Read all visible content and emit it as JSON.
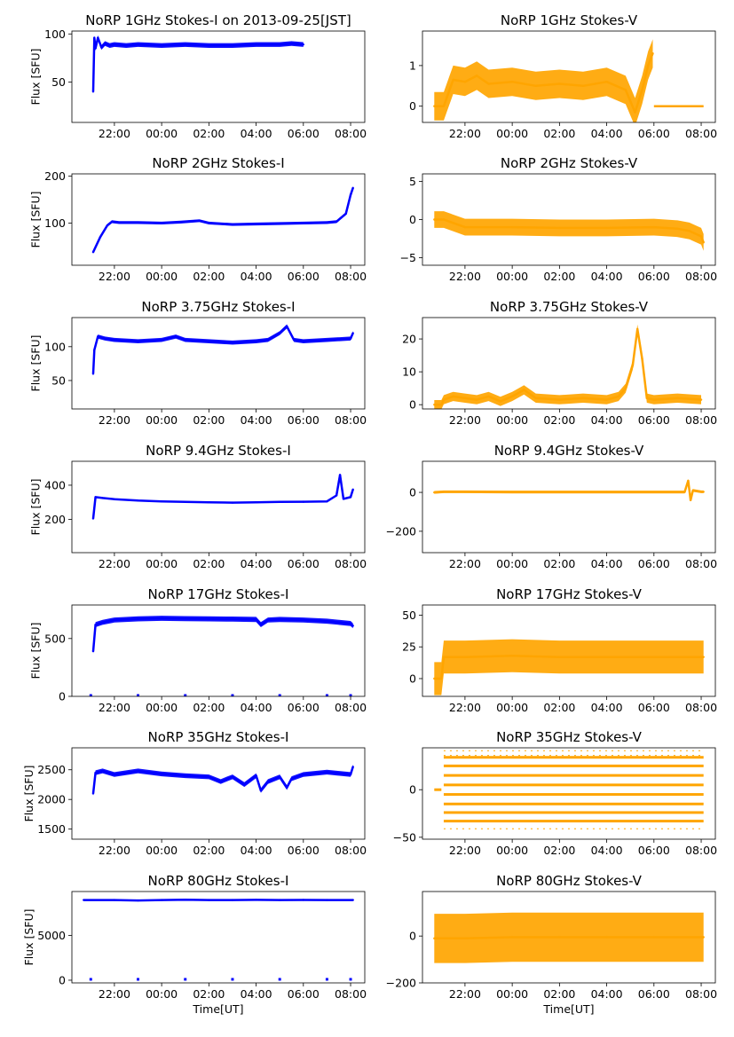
{
  "figure": {
    "x_tick_labels": [
      "22:00",
      "00:00",
      "02:00",
      "04:00",
      "06:00",
      "08:00"
    ],
    "xlabel": "Time[UT]",
    "ylabel": "Flux [SFU]",
    "colors": {
      "stokes_i": "#0000ff",
      "stokes_v": "#ffa500"
    }
  },
  "chart_data": [
    {
      "type": "scatter",
      "title": "NoRP 1GHz Stokes-I on 2013-09-25[JST]",
      "ylabel": "Flux [SFU]",
      "xlabel": "",
      "color": "#0000ff",
      "xlim": [
        20.2,
        32.6
      ],
      "ylim": [
        8,
        103
      ],
      "y_ticks": [
        {
          "v": 50,
          "label": "50"
        },
        {
          "v": 100,
          "label": "100"
        }
      ],
      "x": [
        21.1,
        21.15,
        21.2,
        21.3,
        21.45,
        21.6,
        21.8,
        22.0,
        22.5,
        23.0,
        24.0,
        25.0,
        26.0,
        27.0,
        28.0,
        29.0,
        29.5,
        30.0
      ],
      "y": [
        40,
        96,
        85,
        96,
        86,
        90,
        88,
        89,
        88,
        89,
        88,
        89,
        88,
        88,
        89,
        89,
        90,
        89
      ],
      "band": 2.5
    },
    {
      "type": "scatter",
      "title": "NoRP 1GHz Stokes-V",
      "ylabel": "",
      "xlabel": "",
      "color": "#ffa500",
      "xlim": [
        20.2,
        32.6
      ],
      "ylim": [
        -0.4,
        1.85
      ],
      "y_ticks": [
        {
          "v": 0,
          "label": "0"
        },
        {
          "v": 1,
          "label": "1"
        }
      ],
      "x": [
        20.7,
        21.0,
        21.1,
        21.5,
        22.0,
        22.5,
        23.0,
        24.0,
        25.0,
        26.0,
        27.0,
        28.0,
        28.8,
        29.2,
        29.5,
        29.75,
        29.95
      ],
      "y": [
        0,
        0,
        0,
        0.65,
        0.6,
        0.75,
        0.55,
        0.6,
        0.5,
        0.55,
        0.5,
        0.6,
        0.4,
        -0.15,
        0.4,
        1.0,
        1.3
      ],
      "band": 0.35,
      "x2": [
        30.0,
        32.1
      ],
      "y2": [
        0,
        0
      ]
    },
    {
      "type": "scatter",
      "title": "NoRP 2GHz Stokes-I",
      "ylabel": "Flux [SFU]",
      "xlabel": "",
      "color": "#0000ff",
      "xlim": [
        20.2,
        32.6
      ],
      "ylim": [
        10,
        205
      ],
      "y_ticks": [
        {
          "v": 100,
          "label": "100"
        },
        {
          "v": 200,
          "label": "200"
        }
      ],
      "x": [
        21.1,
        21.4,
        21.7,
        21.9,
        22.2,
        23.0,
        24.0,
        24.8,
        25.6,
        26.0,
        27.0,
        28.0,
        29.0,
        30.0,
        31.0,
        31.4,
        31.8,
        32.0,
        32.1
      ],
      "y": [
        38,
        70,
        95,
        103,
        101,
        101,
        100,
        102,
        105,
        100,
        97,
        98,
        99,
        100,
        101,
        103,
        120,
        160,
        175
      ],
      "band": 3
    },
    {
      "type": "scatter",
      "title": "NoRP 2GHz Stokes-V",
      "ylabel": "",
      "xlabel": "",
      "color": "#ffa500",
      "xlim": [
        20.2,
        32.6
      ],
      "ylim": [
        -6,
        6
      ],
      "y_ticks": [
        {
          "v": -5,
          "label": "−5"
        },
        {
          "v": 0,
          "label": "0"
        },
        {
          "v": 5,
          "label": "5"
        }
      ],
      "x": [
        20.7,
        21.0,
        21.1,
        22.0,
        24.0,
        26.0,
        28.0,
        30.0,
        31.0,
        31.5,
        32.0,
        32.1
      ],
      "y": [
        0,
        0,
        0,
        -1.0,
        -1.0,
        -1.1,
        -1.1,
        -1.0,
        -1.2,
        -1.5,
        -2.2,
        -3.0
      ],
      "band": 1.1
    },
    {
      "type": "scatter",
      "title": "NoRP 3.75GHz Stokes-I",
      "ylabel": "Flux [SFU]",
      "xlabel": "",
      "color": "#0000ff",
      "xlim": [
        20.2,
        32.6
      ],
      "ylim": [
        8,
        143
      ],
      "y_ticks": [
        {
          "v": 50,
          "label": "50"
        },
        {
          "v": 100,
          "label": "100"
        }
      ],
      "x": [
        21.1,
        21.15,
        21.3,
        21.6,
        22.0,
        23.0,
        24.0,
        24.6,
        25.0,
        26.0,
        27.0,
        28.0,
        28.5,
        29.0,
        29.3,
        29.6,
        30.0,
        31.0,
        32.0,
        32.1
      ],
      "y": [
        60,
        95,
        115,
        112,
        110,
        108,
        110,
        115,
        110,
        108,
        106,
        108,
        110,
        120,
        130,
        110,
        108,
        110,
        112,
        120
      ],
      "band": 3
    },
    {
      "type": "scatter",
      "title": "NoRP 3.75GHz Stokes-V",
      "ylabel": "",
      "xlabel": "",
      "color": "#ffa500",
      "xlim": [
        20.2,
        32.6
      ],
      "ylim": [
        -1.3,
        26.5
      ],
      "y_ticks": [
        {
          "v": 0,
          "label": "0"
        },
        {
          "v": 10,
          "label": "10"
        },
        {
          "v": 20,
          "label": "20"
        }
      ],
      "x": [
        20.7,
        21.0,
        21.1,
        21.5,
        22.0,
        22.5,
        23.0,
        23.5,
        24.0,
        24.5,
        25.0,
        26.0,
        27.0,
        28.0,
        28.5,
        28.8,
        29.1,
        29.3,
        29.5,
        29.7,
        30.0,
        31.0,
        32.0
      ],
      "y": [
        0,
        0,
        1.5,
        2.5,
        2.0,
        1.5,
        2.5,
        1.0,
        2.5,
        4.5,
        2.0,
        1.5,
        2.0,
        1.5,
        2.5,
        5.0,
        12.0,
        23.0,
        14.0,
        2.0,
        1.5,
        2.0,
        1.5
      ],
      "band": 1.4
    },
    {
      "type": "scatter",
      "title": "NoRP 9.4GHz Stokes-I",
      "ylabel": "Flux [SFU]",
      "xlabel": "",
      "color": "#0000ff",
      "xlim": [
        20.2,
        32.6
      ],
      "ylim": [
        5,
        540
      ],
      "y_ticks": [
        {
          "v": 200,
          "label": "200"
        },
        {
          "v": 400,
          "label": "400"
        }
      ],
      "x": [
        21.1,
        21.2,
        21.5,
        22.0,
        23.0,
        24.0,
        25.0,
        26.0,
        27.0,
        28.0,
        29.0,
        30.0,
        31.0,
        31.4,
        31.55,
        31.7,
        32.0,
        32.1
      ],
      "y": [
        205,
        330,
        325,
        318,
        310,
        305,
        302,
        300,
        298,
        300,
        302,
        303,
        305,
        340,
        460,
        320,
        330,
        375
      ],
      "band": 7
    },
    {
      "type": "scatter",
      "title": "NoRP 9.4GHz Stokes-V",
      "ylabel": "",
      "xlabel": "",
      "color": "#ffa500",
      "xlim": [
        20.2,
        32.6
      ],
      "ylim": [
        -310,
        160
      ],
      "y_ticks": [
        {
          "v": -200,
          "label": "−200"
        },
        {
          "v": 0,
          "label": "0"
        }
      ],
      "x": [
        20.7,
        21.1,
        22.0,
        24.0,
        26.0,
        28.0,
        30.0,
        31.3,
        31.45,
        31.55,
        31.65,
        32.0,
        32.1
      ],
      "y": [
        0,
        3,
        3,
        2,
        2,
        2,
        2,
        2,
        60,
        -40,
        10,
        3,
        3
      ],
      "band": 7
    },
    {
      "type": "scatter",
      "title": "NoRP 17GHz Stokes-I",
      "ylabel": "Flux [SFU]",
      "xlabel": "",
      "color": "#0000ff",
      "xlim": [
        20.2,
        32.6
      ],
      "ylim": [
        0,
        790
      ],
      "y_ticks": [
        {
          "v": 0,
          "label": "0"
        },
        {
          "v": 500,
          "label": "500"
        }
      ],
      "x": [
        21.1,
        21.2,
        21.5,
        22.0,
        23.0,
        24.0,
        25.0,
        26.0,
        27.0,
        28.0,
        28.2,
        28.5,
        29.0,
        30.0,
        31.0,
        32.0,
        32.1
      ],
      "y": [
        390,
        620,
        640,
        660,
        670,
        675,
        672,
        670,
        668,
        665,
        620,
        660,
        665,
        660,
        650,
        630,
        610
      ],
      "band": 22,
      "dots_y": 0
    },
    {
      "type": "scatter",
      "title": "NoRP 17GHz Stokes-V",
      "ylabel": "",
      "xlabel": "",
      "color": "#ffa500",
      "xlim": [
        20.2,
        32.6
      ],
      "ylim": [
        -14,
        58
      ],
      "y_ticks": [
        {
          "v": 0,
          "label": "0"
        },
        {
          "v": 25,
          "label": "25"
        },
        {
          "v": 50,
          "label": "50"
        }
      ],
      "x": [
        20.7,
        21.0,
        21.1,
        22.0,
        24.0,
        26.0,
        28.0,
        30.0,
        32.0,
        32.1
      ],
      "y": [
        0,
        0,
        17,
        17,
        18,
        17,
        17,
        17,
        17,
        17
      ],
      "band": 13
    },
    {
      "type": "scatter",
      "title": "NoRP 35GHz Stokes-I",
      "ylabel": "Flux [SFU]",
      "xlabel": "",
      "color": "#0000ff",
      "xlim": [
        20.2,
        32.6
      ],
      "ylim": [
        1330,
        2870
      ],
      "y_ticks": [
        {
          "v": 1500,
          "label": "1500"
        },
        {
          "v": 2000,
          "label": "2000"
        },
        {
          "v": 2500,
          "label": "2500"
        }
      ],
      "x": [
        21.1,
        21.2,
        21.5,
        22.0,
        22.5,
        23.0,
        24.0,
        25.0,
        26.0,
        26.5,
        26.8,
        27.0,
        27.5,
        28.0,
        28.2,
        28.5,
        29.0,
        29.3,
        29.5,
        30.0,
        31.0,
        32.0,
        32.1
      ],
      "y": [
        2100,
        2450,
        2480,
        2420,
        2450,
        2480,
        2430,
        2400,
        2380,
        2300,
        2350,
        2380,
        2250,
        2400,
        2150,
        2300,
        2380,
        2200,
        2350,
        2420,
        2460,
        2420,
        2550
      ],
      "band": 40
    },
    {
      "type": "scatter",
      "title": "NoRP 35GHz Stokes-V",
      "ylabel": "",
      "xlabel": "",
      "color": "#ffa500",
      "xlim": [
        20.2,
        32.6
      ],
      "ylim": [
        -52,
        44
      ],
      "y_ticks": [
        {
          "v": -50,
          "label": "−50"
        },
        {
          "v": 0,
          "label": "0"
        }
      ],
      "levels": [
        -33,
        -24,
        -15,
        -5,
        5,
        15,
        25,
        34
      ],
      "level_x": [
        21.1,
        32.1
      ],
      "lead_x": [
        20.7,
        21.0
      ]
    },
    {
      "type": "scatter",
      "title": "NoRP 80GHz Stokes-I",
      "ylabel": "Flux [SFU]",
      "xlabel": "Time[UT]",
      "color": "#0000ff",
      "xlim": [
        20.2,
        32.6
      ],
      "ylim": [
        -300,
        9900
      ],
      "y_ticks": [
        {
          "v": 0,
          "label": "0"
        },
        {
          "v": 5000,
          "label": "5000"
        }
      ],
      "x": [
        20.7,
        22.0,
        23.0,
        24.0,
        25.0,
        26.0,
        27.0,
        28.0,
        29.0,
        30.0,
        31.0,
        32.1
      ],
      "y": [
        8950,
        8950,
        8900,
        8950,
        8980,
        8950,
        8950,
        8970,
        8950,
        8960,
        8950,
        8950
      ],
      "band": 90,
      "dots_y": 0
    },
    {
      "type": "scatter",
      "title": "NoRP 80GHz Stokes-V",
      "ylabel": "",
      "xlabel": "Time[UT]",
      "color": "#ffa500",
      "xlim": [
        20.2,
        32.6
      ],
      "ylim": [
        -200,
        190
      ],
      "y_ticks": [
        {
          "v": -200,
          "label": "−200"
        },
        {
          "v": 0,
          "label": "0"
        }
      ],
      "x": [
        20.7,
        22.0,
        24.0,
        26.0,
        28.0,
        30.0,
        32.1
      ],
      "y": [
        -10,
        -10,
        -5,
        -5,
        -5,
        -5,
        -5
      ],
      "band": 105
    }
  ]
}
